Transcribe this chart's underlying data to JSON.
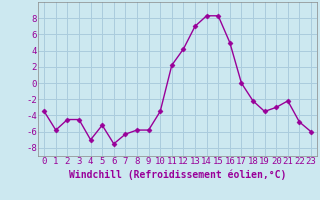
{
  "x": [
    0,
    1,
    2,
    3,
    4,
    5,
    6,
    7,
    8,
    9,
    10,
    11,
    12,
    13,
    14,
    15,
    16,
    17,
    18,
    19,
    20,
    21,
    22,
    23
  ],
  "y": [
    -3.5,
    -5.8,
    -4.5,
    -4.5,
    -7.0,
    -5.2,
    -7.5,
    -6.3,
    -5.8,
    -5.8,
    -3.5,
    2.2,
    4.2,
    7.0,
    8.3,
    8.3,
    5.0,
    0.0,
    -2.2,
    -3.5,
    -3.0,
    -2.2,
    -4.8,
    -6.0
  ],
  "line_color": "#990099",
  "marker": "D",
  "marker_size": 2.5,
  "line_width": 1.0,
  "bg_color": "#cce8f0",
  "grid_color": "#aaccdd",
  "xlabel": "Windchill (Refroidissement éolien,°C)",
  "xlabel_fontsize": 7,
  "tick_fontsize": 6.5,
  "xlim": [
    -0.5,
    23.5
  ],
  "ylim": [
    -9,
    10
  ],
  "yticks": [
    -8,
    -6,
    -4,
    -2,
    0,
    2,
    4,
    6,
    8
  ],
  "xticks": [
    0,
    1,
    2,
    3,
    4,
    5,
    6,
    7,
    8,
    9,
    10,
    11,
    12,
    13,
    14,
    15,
    16,
    17,
    18,
    19,
    20,
    21,
    22,
    23
  ]
}
